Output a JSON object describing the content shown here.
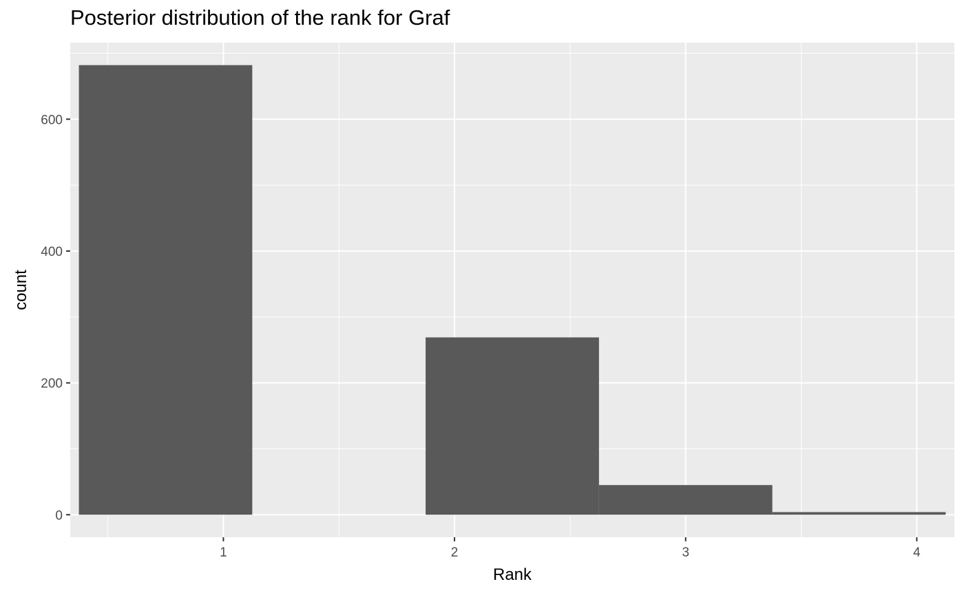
{
  "chart_data": {
    "type": "bar",
    "title": "Posterior distribution of the rank for Graf",
    "xlabel": "Rank",
    "ylabel": "count",
    "categories": [
      "1",
      "2",
      "3",
      "4"
    ],
    "bars": [
      {
        "x_start": 0.375,
        "x_end": 1.125,
        "value": 682
      },
      {
        "x_start": 1.125,
        "x_end": 1.875,
        "value": 0
      },
      {
        "x_start": 1.875,
        "x_end": 2.625,
        "value": 269
      },
      {
        "x_start": 2.625,
        "x_end": 3.375,
        "value": 45
      },
      {
        "x_start": 3.375,
        "x_end": 4.125,
        "value": 4
      }
    ],
    "xlim": [
      0.3375,
      4.1625
    ],
    "ylim": [
      -34.1,
      716.1
    ],
    "x_ticks": [
      1,
      2,
      3,
      4
    ],
    "y_ticks": [
      0,
      200,
      400,
      600
    ],
    "grid": true,
    "legend": "none",
    "colors": {
      "bar": "#595959",
      "panel": "#ebebeb",
      "grid": "#ffffff",
      "tick_text": "#4d4d4d",
      "tick_mark": "#333333"
    }
  }
}
